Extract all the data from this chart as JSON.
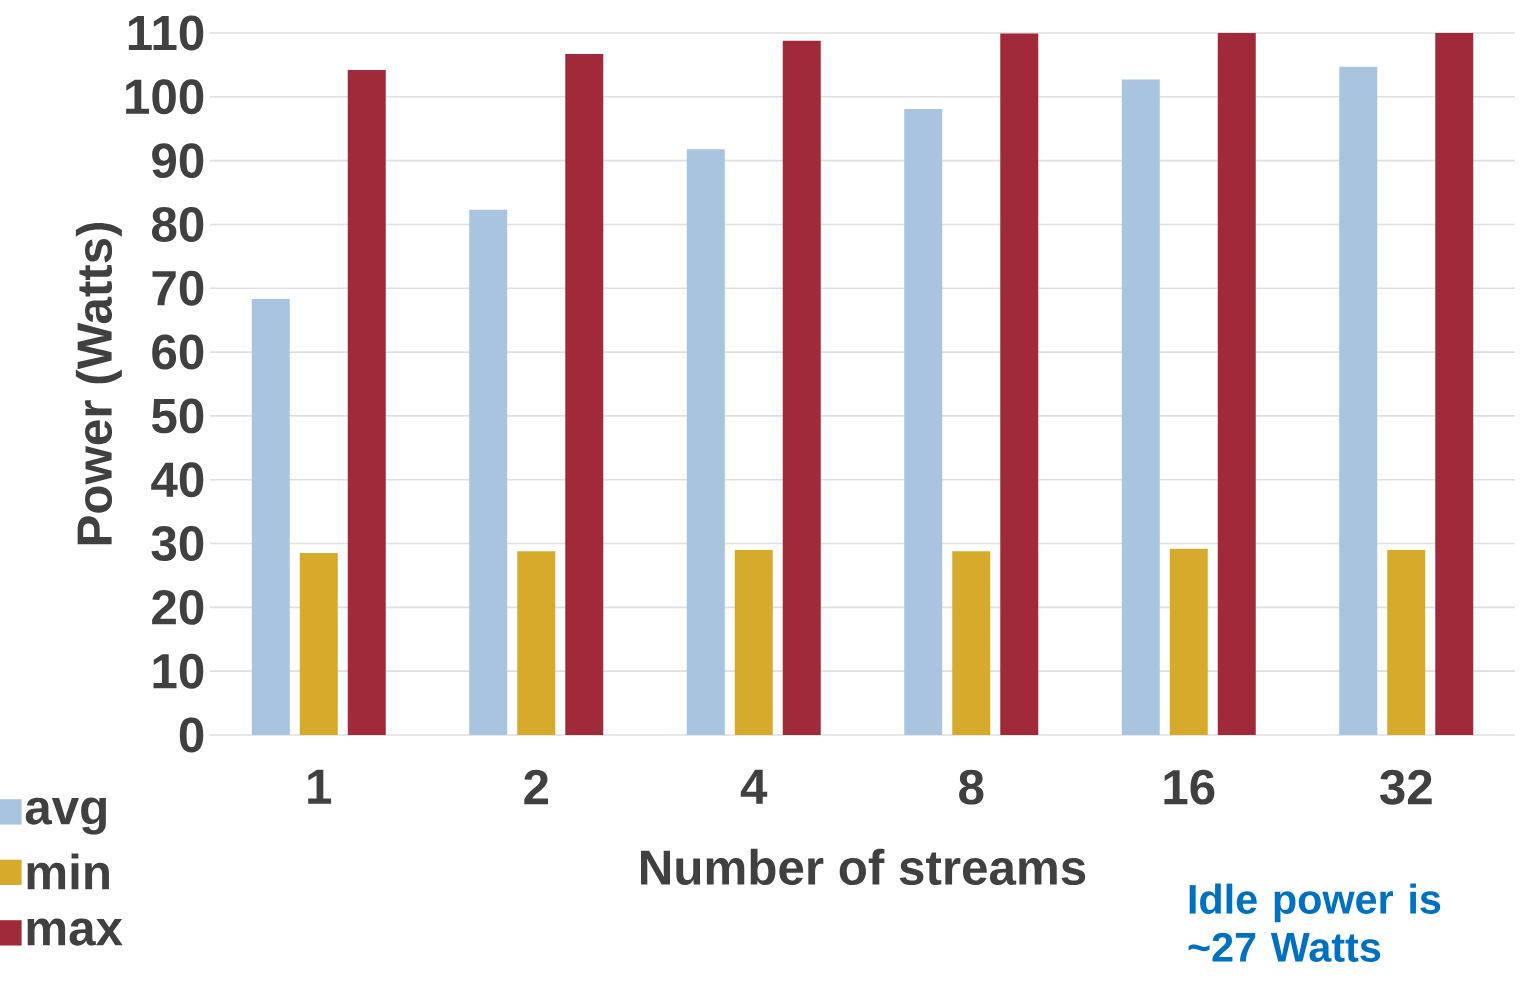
{
  "chart_data": {
    "type": "bar",
    "xlabel": "Number of streams",
    "ylabel": "Power (Watts)",
    "categories": [
      "1",
      "2",
      "4",
      "8",
      "16",
      "32"
    ],
    "series": [
      {
        "name": "avg",
        "color": "#a9c4de",
        "values": [
          68.3,
          82.3,
          91.8,
          98.1,
          102.7,
          104.7
        ]
      },
      {
        "name": "min",
        "color": "#d6aa2a",
        "values": [
          28.5,
          28.8,
          29.0,
          28.8,
          29.2,
          29.0
        ]
      },
      {
        "name": "max",
        "color": "#a12a3a",
        "values": [
          104.2,
          106.7,
          108.8,
          109.9,
          110,
          110
        ]
      }
    ],
    "ylim": [
      0,
      110
    ],
    "yticks": [
      0,
      10,
      20,
      30,
      40,
      50,
      60,
      70,
      80,
      90,
      100,
      110
    ],
    "grid": "y",
    "legend": "bottom left",
    "annotations": [
      "Idle power is ~27 Watts"
    ]
  }
}
